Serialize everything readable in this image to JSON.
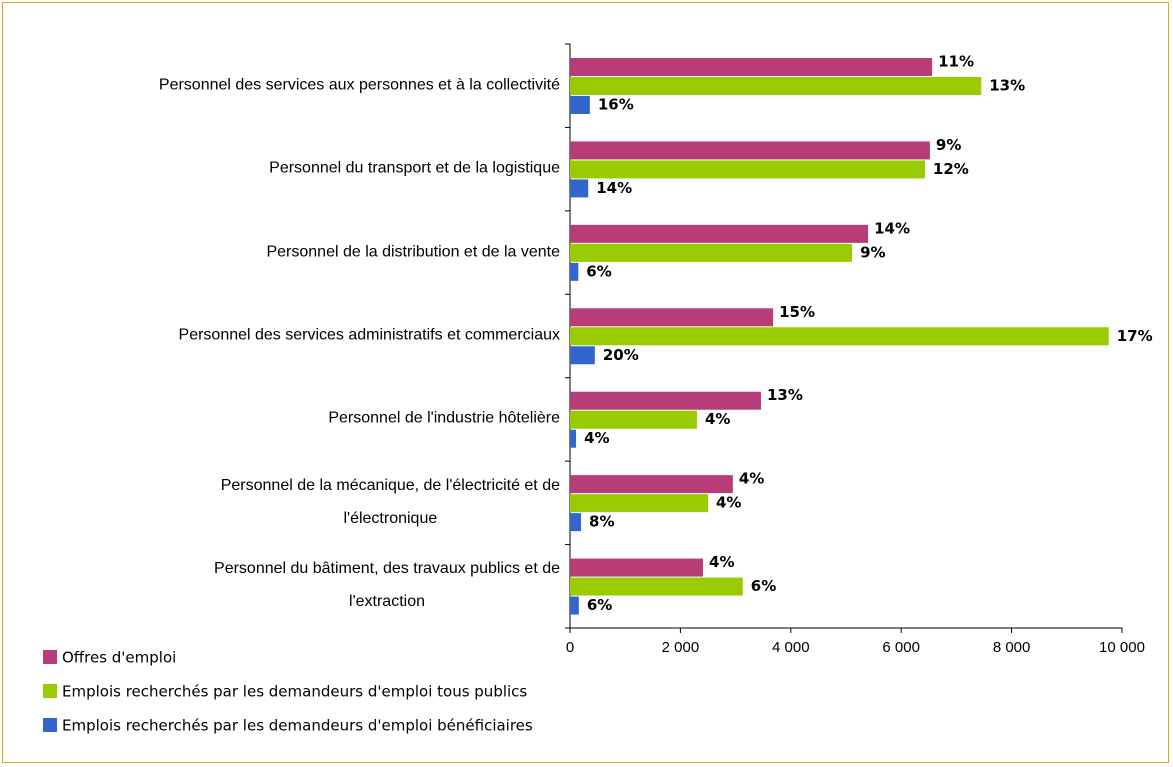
{
  "chart_data": {
    "type": "bar",
    "orientation": "horizontal",
    "categories": [
      "Personnel des services aux personnes et à la collectivité",
      "Personnel du transport et de la logistique",
      "Personnel de la distribution et de la vente",
      "Personnel des services administratifs et commerciaux",
      "Personnel de l'industrie hôtelière",
      "Personnel de la mécanique, de l'électricité et de\nl'électronique",
      "Personnel du bâtiment, des travaux publics et de\nl'extraction"
    ],
    "series": [
      {
        "name": "Offres d'emploi",
        "color": "#b83c78",
        "values": [
          6560,
          6520,
          5400,
          3680,
          3460,
          2950,
          2410
        ],
        "labels": [
          "11%",
          "9%",
          "14%",
          "15%",
          "13%",
          "4%",
          "4%"
        ]
      },
      {
        "name": "Emplois recherchés par les demandeurs d'emploi tous publics",
        "color": "#99cc00",
        "values": [
          7450,
          6430,
          5110,
          9760,
          2300,
          2500,
          3130
        ],
        "labels": [
          "13%",
          "12%",
          "9%",
          "17%",
          "4%",
          "4%",
          "6%"
        ]
      },
      {
        "name": "Emplois recherchés par les demandeurs d'emploi bénéficiaires",
        "color": "#3366cc",
        "values": [
          360,
          330,
          150,
          450,
          110,
          200,
          160
        ],
        "labels": [
          "16%",
          "14%",
          "6%",
          "20%",
          "4%",
          "8%",
          "6%"
        ]
      }
    ],
    "xlim": [
      0,
      10000
    ],
    "xticks": [
      0,
      {
        "value": 2000,
        "label": "2 000"
      },
      {
        "value": 4000,
        "label": "4 000"
      },
      {
        "value": 6000,
        "label": "6 000"
      },
      {
        "value": 8000,
        "label": "8 000"
      },
      {
        "value": 10000,
        "label": "10 000"
      }
    ],
    "grid": false
  }
}
